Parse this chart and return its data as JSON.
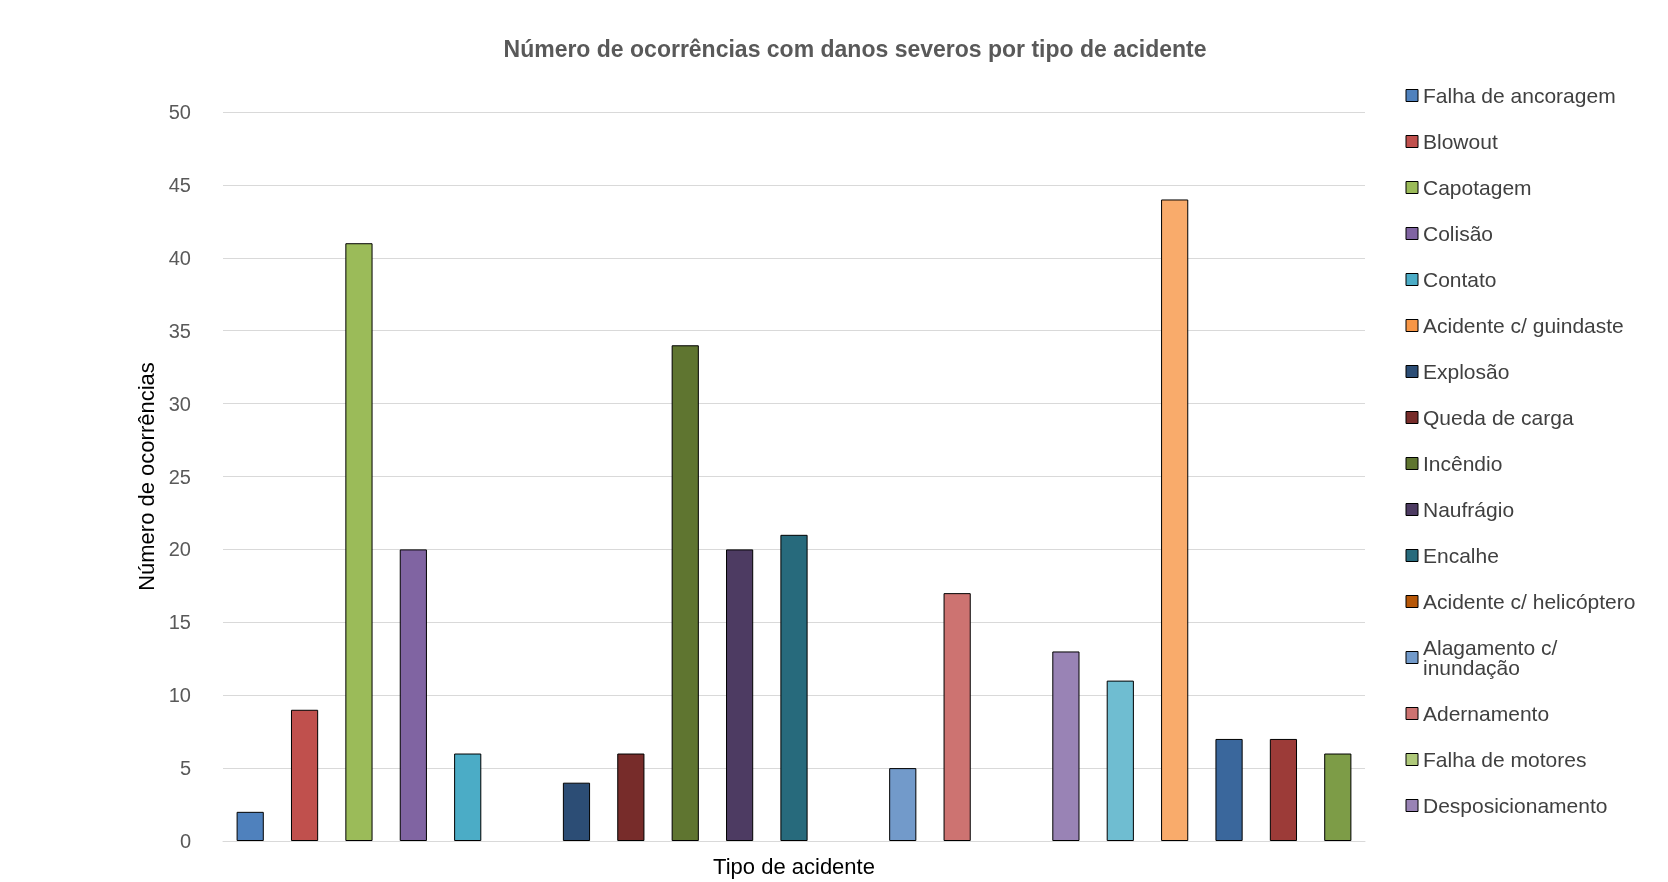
{
  "chart_data": {
    "type": "bar",
    "title": "Número de ocorrências com danos severos por tipo de acidente",
    "xlabel": "Tipo de acidente",
    "ylabel": "Número de ocorrências",
    "categories": [
      null,
      null,
      null,
      null,
      null,
      null,
      null,
      null,
      null,
      null,
      null,
      null,
      null,
      null,
      null,
      null,
      null,
      null,
      null,
      null,
      null
    ],
    "series": [
      {
        "name": "Falha de ancoragem",
        "color": "#4f81bd",
        "values": [
          2,
          null,
          null,
          null,
          null,
          null,
          null,
          null,
          null,
          null,
          null,
          null,
          null,
          null,
          null,
          null,
          null,
          null,
          null,
          null,
          null
        ]
      },
      {
        "name": "Blowout",
        "color": "#c0504d",
        "values": [
          null,
          9,
          null,
          null,
          null,
          null,
          null,
          null,
          null,
          null,
          null,
          null,
          null,
          null,
          null,
          null,
          null,
          null,
          null,
          null,
          null
        ]
      },
      {
        "name": "Capotagem",
        "color": "#9bbb59",
        "values": [
          null,
          null,
          41,
          null,
          null,
          null,
          null,
          null,
          null,
          null,
          null,
          null,
          null,
          null,
          null,
          null,
          null,
          null,
          null,
          null,
          null
        ]
      },
      {
        "name": "Colisão",
        "color": "#8064a2",
        "values": [
          null,
          null,
          null,
          20,
          null,
          null,
          null,
          null,
          null,
          null,
          null,
          null,
          null,
          null,
          null,
          null,
          null,
          null,
          null,
          null,
          null
        ]
      },
      {
        "name": "Contato",
        "color": "#4bacc6",
        "values": [
          null,
          null,
          null,
          null,
          6,
          null,
          null,
          null,
          null,
          null,
          null,
          null,
          null,
          null,
          null,
          null,
          null,
          null,
          null,
          null,
          null
        ]
      },
      {
        "name": "Acidente c/ guindaste",
        "color": "#f79646",
        "values": [
          null,
          null,
          null,
          null,
          null,
          0,
          null,
          null,
          null,
          null,
          null,
          null,
          null,
          null,
          null,
          null,
          null,
          null,
          null,
          null,
          null
        ]
      },
      {
        "name": "Explosão",
        "color": "#2c4d75",
        "values": [
          null,
          null,
          null,
          null,
          null,
          null,
          4,
          null,
          null,
          null,
          null,
          null,
          null,
          null,
          null,
          null,
          null,
          null,
          null,
          null,
          null
        ]
      },
      {
        "name": "Queda de carga",
        "color": "#772c2a",
        "values": [
          null,
          null,
          null,
          null,
          null,
          null,
          null,
          6,
          null,
          null,
          null,
          null,
          null,
          null,
          null,
          null,
          null,
          null,
          null,
          null,
          null
        ]
      },
      {
        "name": "Incêndio",
        "color": "#5f7530",
        "values": [
          null,
          null,
          null,
          null,
          null,
          null,
          null,
          null,
          34,
          null,
          null,
          null,
          null,
          null,
          null,
          null,
          null,
          null,
          null,
          null,
          null
        ]
      },
      {
        "name": "Naufrágio",
        "color": "#4d3b62",
        "values": [
          null,
          null,
          null,
          null,
          null,
          null,
          null,
          null,
          null,
          20,
          null,
          null,
          null,
          null,
          null,
          null,
          null,
          null,
          null,
          null,
          null
        ]
      },
      {
        "name": "Encalhe",
        "color": "#276a7c",
        "values": [
          null,
          null,
          null,
          null,
          null,
          null,
          null,
          null,
          null,
          null,
          21,
          null,
          null,
          null,
          null,
          null,
          null,
          null,
          null,
          null,
          null
        ]
      },
      {
        "name": "Acidente c/ helicóptero",
        "color": "#b65708",
        "values": [
          null,
          null,
          null,
          null,
          null,
          null,
          null,
          null,
          null,
          null,
          null,
          0,
          null,
          null,
          null,
          null,
          null,
          null,
          null,
          null,
          null
        ]
      },
      {
        "name": "Alagamento c/ inundação",
        "color": "#729aca",
        "values": [
          null,
          null,
          null,
          null,
          null,
          null,
          null,
          null,
          null,
          null,
          null,
          null,
          5,
          null,
          null,
          null,
          null,
          null,
          null,
          null,
          null
        ]
      },
      {
        "name": "Adernamento",
        "color": "#cd7371",
        "values": [
          null,
          null,
          null,
          null,
          null,
          null,
          null,
          null,
          null,
          null,
          null,
          null,
          null,
          17,
          null,
          null,
          null,
          null,
          null,
          null,
          null
        ]
      },
      {
        "name": "Falha de motores",
        "color": "#afc97a",
        "values": [
          null,
          null,
          null,
          null,
          null,
          null,
          null,
          null,
          null,
          null,
          null,
          null,
          null,
          null,
          0,
          null,
          null,
          null,
          null,
          null,
          null
        ]
      },
      {
        "name": "Desposicionamento",
        "color": "#9983b5",
        "values": [
          null,
          null,
          null,
          null,
          null,
          null,
          null,
          null,
          null,
          null,
          null,
          null,
          null,
          null,
          null,
          13,
          null,
          null,
          null,
          null,
          null
        ]
      },
      {
        "color": "#6fbdd1",
        "values": [
          null,
          null,
          null,
          null,
          null,
          null,
          null,
          null,
          null,
          null,
          null,
          null,
          null,
          null,
          null,
          null,
          11,
          null,
          null,
          null,
          null
        ]
      },
      {
        "color": "#f9ab6b",
        "values": [
          null,
          null,
          null,
          null,
          null,
          null,
          null,
          null,
          null,
          null,
          null,
          null,
          null,
          null,
          null,
          null,
          null,
          44,
          null,
          null,
          null
        ]
      },
      {
        "color": "#3a679c",
        "values": [
          null,
          null,
          null,
          null,
          null,
          null,
          null,
          null,
          null,
          null,
          null,
          null,
          null,
          null,
          null,
          null,
          null,
          null,
          7,
          null,
          null
        ]
      },
      {
        "color": "#9c3b38",
        "values": [
          null,
          null,
          null,
          null,
          null,
          null,
          null,
          null,
          null,
          null,
          null,
          null,
          null,
          null,
          null,
          null,
          null,
          null,
          null,
          7,
          null
        ]
      },
      {
        "color": "#7d9c47",
        "values": [
          null,
          null,
          null,
          null,
          null,
          null,
          null,
          null,
          null,
          null,
          null,
          null,
          null,
          null,
          null,
          null,
          null,
          null,
          null,
          null,
          6
        ]
      }
    ],
    "ylim": [
      0,
      50
    ],
    "yticks": [
      0,
      5,
      10,
      15,
      20,
      25,
      30,
      35,
      40,
      45,
      50
    ],
    "grid": "y",
    "legend": "right"
  }
}
